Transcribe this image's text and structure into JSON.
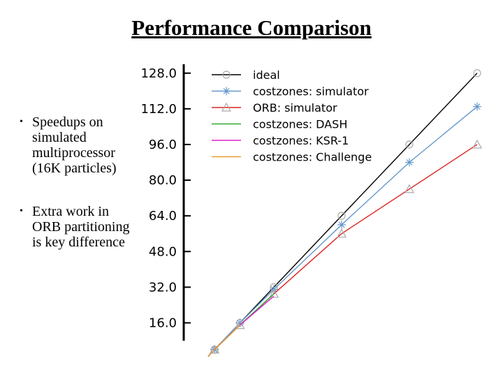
{
  "slide": {
    "title": "Performance Comparison",
    "bullets": [
      "Speedups on simulated multiprocessor (16K particles)",
      "Extra work in ORB partitioning is key difference"
    ]
  },
  "chart_data": {
    "type": "line",
    "title": "",
    "xlabel": "",
    "ylabel": "",
    "ylim": [
      8,
      132
    ],
    "xlim": [
      0,
      128
    ],
    "yticks": [
      "16.0",
      "32.0",
      "48.0",
      "64.0",
      "80.0",
      "96.0",
      "112.0",
      "128.0"
    ],
    "grid": false,
    "legend_position": "top-left",
    "series": [
      {
        "name": "ideal",
        "color": "#000000",
        "marker": "circle",
        "x": [
          1,
          4,
          16,
          32,
          64,
          96,
          128
        ],
        "y": [
          1,
          4,
          16,
          32,
          64,
          96,
          128
        ]
      },
      {
        "name": "costzones: simulator",
        "color": "#6699cc",
        "marker": "star",
        "x": [
          1,
          4,
          16,
          32,
          64,
          96,
          128
        ],
        "y": [
          1,
          4,
          16,
          31,
          60,
          88,
          113
        ]
      },
      {
        "name": "ORB: simulator",
        "color": "#dd2222",
        "marker": "triangle",
        "x": [
          1,
          4,
          16,
          32,
          64,
          96,
          128
        ],
        "y": [
          1,
          4,
          15,
          29,
          56,
          76,
          96
        ]
      },
      {
        "name": "costzones: DASH",
        "color": "#33aa33",
        "marker": "none",
        "x": [
          1,
          4,
          16,
          32
        ],
        "y": [
          1,
          4,
          15,
          29
        ]
      },
      {
        "name": "costzones: KSR-1",
        "color": "#dd22cc",
        "marker": "none",
        "x": [
          1,
          4,
          16,
          32
        ],
        "y": [
          1,
          4,
          15,
          28
        ]
      },
      {
        "name": "costzones: Challenge",
        "color": "#e8a030",
        "marker": "none",
        "x": [
          1,
          4,
          16
        ],
        "y": [
          1,
          4,
          15
        ]
      }
    ]
  }
}
